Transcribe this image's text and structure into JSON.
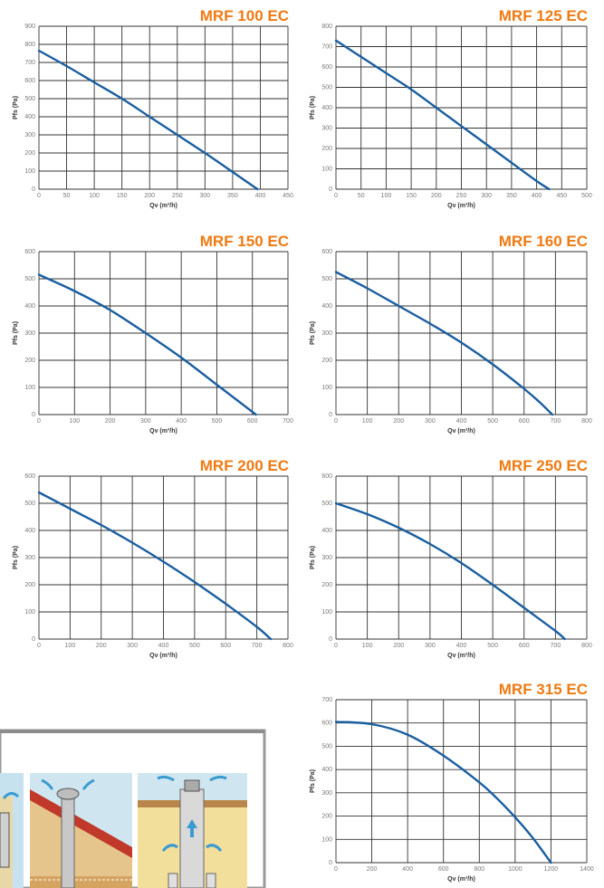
{
  "chart_data": [
    {
      "type": "line",
      "title": "MRF 100 EC",
      "xlabel": "Qv (m³/h)",
      "ylabel": "Pfs (Pa)",
      "xlim": [
        0,
        450
      ],
      "ylim": [
        0,
        900
      ],
      "xticks": [
        0,
        50,
        100,
        150,
        200,
        250,
        300,
        350,
        400,
        450
      ],
      "yticks": [
        0,
        100,
        200,
        300,
        400,
        500,
        600,
        700,
        800,
        900
      ],
      "x": [
        0,
        50,
        100,
        150,
        200,
        250,
        300,
        350,
        395
      ],
      "y": [
        765,
        680,
        590,
        500,
        400,
        300,
        200,
        95,
        0
      ]
    },
    {
      "type": "line",
      "title": "MRF 125 EC",
      "xlabel": "Qv (m³/h)",
      "ylabel": "Pfs (Pa)",
      "xlim": [
        0,
        500
      ],
      "ylim": [
        0,
        800
      ],
      "xticks": [
        0,
        50,
        100,
        150,
        200,
        250,
        300,
        350,
        400,
        450,
        500
      ],
      "yticks": [
        0,
        100,
        200,
        300,
        400,
        500,
        600,
        700,
        800
      ],
      "x": [
        0,
        50,
        100,
        150,
        200,
        250,
        300,
        350,
        400,
        425
      ],
      "y": [
        730,
        650,
        570,
        490,
        400,
        310,
        220,
        130,
        40,
        0
      ]
    },
    {
      "type": "line",
      "title": "MRF 150 EC",
      "xlabel": "Qv (m³/h)",
      "ylabel": "Pfs (Pa)",
      "xlim": [
        0,
        700
      ],
      "ylim": [
        0,
        600
      ],
      "xticks": [
        0,
        100,
        200,
        300,
        400,
        500,
        600,
        700
      ],
      "yticks": [
        0,
        100,
        200,
        300,
        400,
        500,
        600
      ],
      "x": [
        0,
        100,
        200,
        300,
        400,
        500,
        560,
        610
      ],
      "y": [
        515,
        455,
        385,
        300,
        210,
        110,
        50,
        0
      ]
    },
    {
      "type": "line",
      "title": "MRF 160 EC",
      "xlabel": "Qv (m³/h)",
      "ylabel": "Pfs (Pa)",
      "xlim": [
        0,
        800
      ],
      "ylim": [
        0,
        600
      ],
      "xticks": [
        0,
        100,
        200,
        300,
        400,
        500,
        600,
        700,
        800
      ],
      "yticks": [
        0,
        100,
        200,
        300,
        400,
        500,
        600
      ],
      "x": [
        0,
        100,
        200,
        300,
        400,
        500,
        600,
        650,
        690
      ],
      "y": [
        525,
        465,
        400,
        335,
        265,
        185,
        95,
        45,
        0
      ]
    },
    {
      "type": "line",
      "title": "MRF 200 EC",
      "xlabel": "Qv (m³/h)",
      "ylabel": "Pfs (Pa)",
      "xlim": [
        0,
        800
      ],
      "ylim": [
        0,
        600
      ],
      "xticks": [
        0,
        100,
        200,
        300,
        400,
        500,
        600,
        700,
        800
      ],
      "yticks": [
        0,
        100,
        200,
        300,
        400,
        500,
        600
      ],
      "x": [
        0,
        100,
        200,
        300,
        400,
        500,
        600,
        700,
        745
      ],
      "y": [
        540,
        480,
        420,
        355,
        285,
        210,
        130,
        45,
        0
      ]
    },
    {
      "type": "line",
      "title": "MRF 250 EC",
      "xlabel": "Qv (m³/h)",
      "ylabel": "Pfs (Pa)",
      "xlim": [
        0,
        800
      ],
      "ylim": [
        0,
        600
      ],
      "xticks": [
        0,
        100,
        200,
        300,
        400,
        500,
        600,
        700,
        800
      ],
      "yticks": [
        0,
        100,
        200,
        300,
        400,
        500,
        600
      ],
      "x": [
        0,
        100,
        200,
        300,
        400,
        500,
        600,
        700,
        730
      ],
      "y": [
        500,
        460,
        410,
        350,
        280,
        200,
        115,
        30,
        0
      ]
    },
    {
      "type": "line",
      "title": "MRF 315 EC",
      "xlabel": "Qv (m³/h)",
      "ylabel": "Pfs (Pa)",
      "xlim": [
        0,
        1400
      ],
      "ylim": [
        0,
        700
      ],
      "xticks": [
        0,
        200,
        400,
        600,
        800,
        1000,
        1200,
        1400
      ],
      "yticks": [
        0,
        100,
        200,
        300,
        400,
        500,
        600,
        700
      ],
      "x": [
        0,
        200,
        400,
        600,
        800,
        900,
        1000,
        1100,
        1200
      ],
      "y": [
        605,
        595,
        550,
        460,
        345,
        275,
        195,
        105,
        0
      ]
    }
  ]
}
